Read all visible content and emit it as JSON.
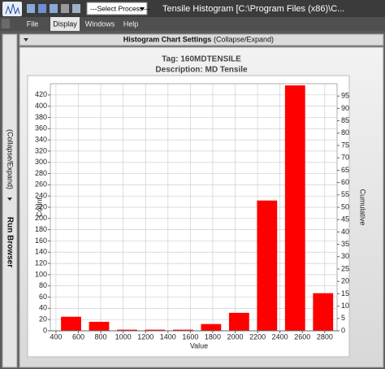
{
  "window": {
    "title": "Tensile Histogram [C:\\Program Files (x86)\\C...",
    "process_select": "---Select Process---"
  },
  "menu": [
    "File",
    "Display",
    "Windows",
    "Help"
  ],
  "side_panel": {
    "toggle": "(Collapse/Expand)",
    "label": "Run Browser"
  },
  "settings_bar": {
    "label": "Histogram Chart Settings",
    "toggle": "(Collapse/Expand)"
  },
  "chart_data": {
    "type": "histogram",
    "title": "Tag: 160MDTENSILE",
    "subtitle": "Description: MD Tensile",
    "x_label": "Value",
    "y_label": "Count",
    "y2_label": "Cumulative",
    "bins": [
      410,
      660,
      910,
      1160,
      1410,
      1660,
      1910,
      2160,
      2410,
      2660,
      2910
    ],
    "counts": [
      25,
      16,
      2,
      2,
      2,
      12,
      32,
      232,
      437,
      67
    ],
    "color": "#ff0000",
    "xlim": [
      350,
      2910
    ],
    "xticks": [
      400,
      600,
      800,
      1000,
      1200,
      1400,
      1600,
      1800,
      2000,
      2200,
      2400,
      2600,
      2800
    ],
    "ylim": [
      0,
      440
    ],
    "yticks": [
      0,
      20,
      40,
      60,
      80,
      100,
      120,
      140,
      160,
      180,
      200,
      220,
      240,
      260,
      280,
      300,
      320,
      340,
      360,
      380,
      400,
      420
    ],
    "y2lim": [
      0,
      100
    ],
    "y2ticks": [
      0,
      5,
      10,
      15,
      20,
      25,
      30,
      35,
      40,
      45,
      50,
      55,
      60,
      65,
      70,
      75,
      80,
      85,
      90,
      95
    ],
    "grid": true
  }
}
